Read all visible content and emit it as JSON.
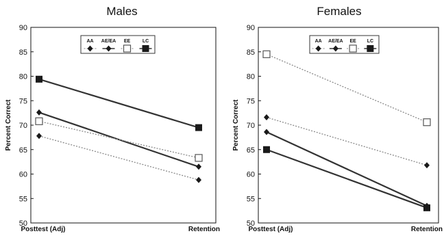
{
  "chart_data": [
    {
      "type": "line",
      "title": "Males",
      "xlabel": "",
      "ylabel": "Percent Correct",
      "categories": [
        "Posttest (Adj)",
        "Retention"
      ],
      "ylim": [
        50,
        90
      ],
      "yticks": [
        50,
        55,
        60,
        65,
        70,
        75,
        80,
        85,
        90
      ],
      "legend_position": "top-center",
      "grid": false,
      "series": [
        {
          "name": "AA",
          "values": [
            67.8,
            58.8
          ],
          "marker": "diamond",
          "line": "dotted"
        },
        {
          "name": "AE/EA",
          "values": [
            72.6,
            61.5
          ],
          "marker": "diamond",
          "line": "solid"
        },
        {
          "name": "EE",
          "values": [
            70.8,
            63.3
          ],
          "marker": "open-square",
          "line": "dotted"
        },
        {
          "name": "LC",
          "values": [
            79.4,
            69.5
          ],
          "marker": "filled-square",
          "line": "solid"
        }
      ]
    },
    {
      "type": "line",
      "title": "Females",
      "xlabel": "",
      "ylabel": "Percent Correct",
      "categories": [
        "Posttest (Adj)",
        "Retention"
      ],
      "ylim": [
        50,
        90
      ],
      "yticks": [
        50,
        55,
        60,
        65,
        70,
        75,
        80,
        85,
        90
      ],
      "legend_position": "top-center",
      "grid": false,
      "series": [
        {
          "name": "AA",
          "values": [
            71.6,
            61.8
          ],
          "marker": "diamond",
          "line": "dotted"
        },
        {
          "name": "AE/EA",
          "values": [
            68.6,
            53.5
          ],
          "marker": "diamond",
          "line": "solid"
        },
        {
          "name": "EE",
          "values": [
            84.5,
            70.6
          ],
          "marker": "open-square",
          "line": "dotted"
        },
        {
          "name": "LC",
          "values": [
            65.0,
            53.1
          ],
          "marker": "filled-square",
          "line": "solid"
        }
      ]
    }
  ]
}
